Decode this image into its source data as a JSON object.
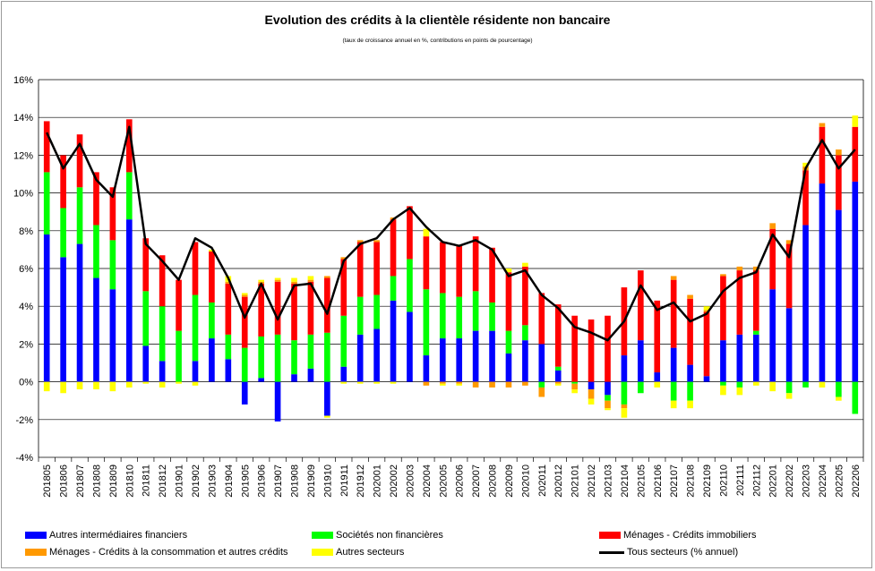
{
  "chart_data": {
    "type": "bar",
    "title": "Evolution des crédits à la clientèle résidente non bancaire",
    "subtitle": "(taux de croissance annuel en %, contributions en points de pourcentage)",
    "ylim": [
      -4,
      16
    ],
    "yticks": [
      -4,
      -2,
      0,
      2,
      4,
      6,
      8,
      10,
      12,
      14,
      16
    ],
    "ytick_labels": [
      "-4%",
      "-2%",
      "0%",
      "2%",
      "4%",
      "6%",
      "8%",
      "10%",
      "12%",
      "14%",
      "16%"
    ],
    "grid": true,
    "legend_position": "bottom",
    "categories": [
      "201805",
      "201806",
      "201807",
      "201808",
      "201809",
      "201810",
      "201811",
      "201812",
      "201901",
      "201902",
      "201903",
      "201904",
      "201905",
      "201906",
      "201907",
      "201908",
      "201909",
      "201910",
      "201911",
      "201912",
      "202001",
      "202002",
      "202003",
      "202004",
      "202005",
      "202006",
      "202007",
      "202008",
      "202009",
      "202010",
      "202011",
      "202012",
      "202101",
      "202102",
      "202103",
      "202104",
      "202105",
      "202106",
      "202107",
      "202108",
      "202109",
      "202110",
      "202111",
      "202112",
      "202201",
      "202202",
      "202203",
      "202204",
      "202205",
      "202206"
    ],
    "series": [
      {
        "name": "Autres intermédiaires financiers",
        "color": "#0000ff",
        "values": [
          7.8,
          6.6,
          7.3,
          5.5,
          4.9,
          8.6,
          1.9,
          1.1,
          0.0,
          1.1,
          2.3,
          1.2,
          -1.2,
          0.2,
          -2.1,
          0.4,
          0.7,
          -1.8,
          0.8,
          2.5,
          2.8,
          4.3,
          3.7,
          1.4,
          2.3,
          2.3,
          2.7,
          2.7,
          1.5,
          2.2,
          2.0,
          0.6,
          0.0,
          -0.4,
          -0.7,
          1.4,
          2.2,
          0.5,
          1.8,
          0.9,
          0.3,
          2.2,
          2.5,
          2.5,
          4.9,
          3.9,
          8.3,
          10.5,
          9.1,
          10.6
        ]
      },
      {
        "name": "Sociétés non financières",
        "color": "#00ff00",
        "values": [
          3.3,
          2.6,
          3.0,
          2.8,
          2.6,
          2.5,
          2.9,
          2.9,
          2.7,
          3.5,
          1.9,
          1.3,
          1.8,
          2.2,
          2.5,
          1.8,
          1.8,
          2.6,
          2.7,
          2.0,
          1.8,
          1.3,
          2.8,
          3.5,
          2.4,
          2.2,
          2.1,
          1.5,
          1.2,
          0.8,
          -0.3,
          0.2,
          -0.1,
          0.0,
          -0.3,
          -1.2,
          -0.6,
          0.0,
          -1.0,
          -1.0,
          0.0,
          -0.2,
          -0.3,
          0.2,
          0.0,
          -0.6,
          -0.3,
          0.0,
          -0.8,
          -1.7
        ]
      },
      {
        "name": "Ménages - Crédits immobiliers",
        "color": "#ff0000",
        "values": [
          2.7,
          2.8,
          2.8,
          2.8,
          2.8,
          2.8,
          2.8,
          2.7,
          2.7,
          2.8,
          2.7,
          2.7,
          2.7,
          2.8,
          2.8,
          3.0,
          2.8,
          2.9,
          3.0,
          2.9,
          2.8,
          3.0,
          2.8,
          2.8,
          2.7,
          2.7,
          2.9,
          2.9,
          3.1,
          3.1,
          2.7,
          3.3,
          3.5,
          3.3,
          3.5,
          3.6,
          3.7,
          3.8,
          3.6,
          3.5,
          3.4,
          3.4,
          3.4,
          3.2,
          3.2,
          3.4,
          2.9,
          3.0,
          2.9,
          2.9
        ]
      },
      {
        "name": "Ménages - Crédits à la consommation et autres crédits",
        "color": "#ff9900",
        "values": [
          0.0,
          0.0,
          0.0,
          0.0,
          0.0,
          0.0,
          0.0,
          0.0,
          0.0,
          0.0,
          0.0,
          0.1,
          0.1,
          0.1,
          0.1,
          0.1,
          0.1,
          0.1,
          0.1,
          0.1,
          0.1,
          0.1,
          0.0,
          -0.2,
          -0.1,
          -0.1,
          -0.3,
          -0.3,
          -0.3,
          -0.2,
          -0.5,
          -0.1,
          -0.3,
          -0.5,
          -0.4,
          -0.2,
          0.0,
          0.0,
          0.2,
          0.2,
          0.1,
          0.1,
          0.2,
          0.2,
          0.3,
          0.2,
          0.2,
          0.2,
          0.3,
          0.0
        ]
      },
      {
        "name": "Autres secteurs",
        "color": "#ffff00",
        "values": [
          -0.5,
          -0.6,
          -0.4,
          -0.4,
          -0.5,
          -0.3,
          -0.1,
          -0.3,
          -0.1,
          -0.2,
          0.1,
          0.3,
          0.1,
          0.1,
          0.1,
          0.2,
          0.2,
          -0.1,
          -0.1,
          -0.1,
          -0.1,
          -0.1,
          0.0,
          0.4,
          -0.1,
          -0.1,
          0.0,
          0.0,
          0.2,
          0.2,
          0.0,
          -0.1,
          -0.2,
          -0.3,
          -0.1,
          -0.5,
          0.0,
          -0.3,
          -0.4,
          -0.4,
          0.2,
          -0.5,
          -0.4,
          -0.2,
          -0.5,
          -0.3,
          0.2,
          -0.3,
          -0.2,
          0.6
        ]
      },
      {
        "name": "Tous secteurs (% annuel)",
        "color": "#000000",
        "kind": "line",
        "values": [
          13.2,
          11.3,
          12.6,
          10.7,
          9.8,
          13.5,
          7.3,
          6.4,
          5.4,
          7.6,
          7.1,
          5.5,
          3.4,
          5.2,
          3.3,
          5.1,
          5.2,
          3.6,
          6.4,
          7.3,
          7.6,
          8.6,
          9.2,
          8.2,
          7.4,
          7.2,
          7.5,
          7.0,
          5.6,
          5.9,
          4.6,
          3.9,
          2.9,
          2.6,
          2.2,
          3.2,
          5.1,
          3.8,
          4.2,
          3.2,
          3.6,
          4.8,
          5.5,
          5.8,
          7.8,
          6.6,
          11.3,
          12.8,
          11.3,
          12.3
        ]
      }
    ]
  }
}
